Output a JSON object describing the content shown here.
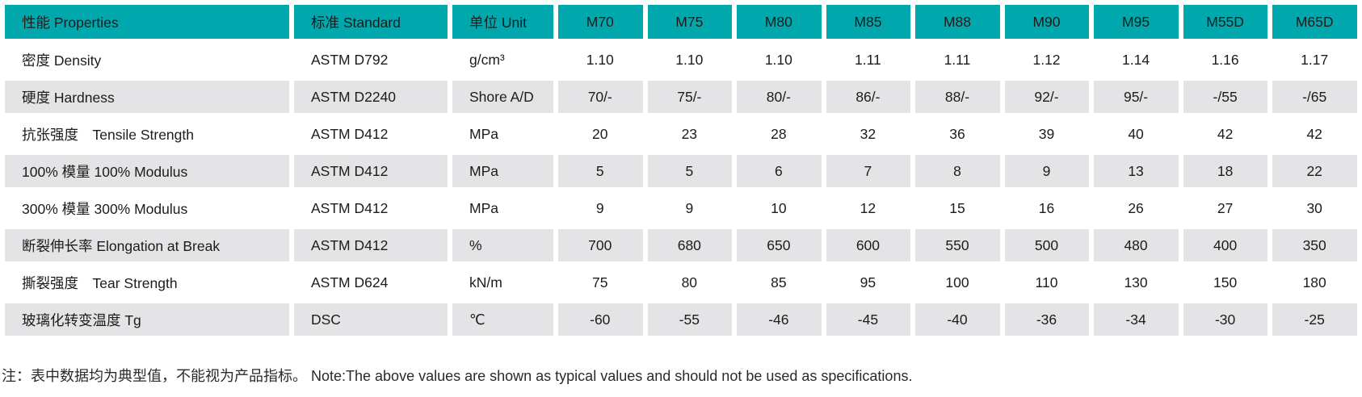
{
  "colors": {
    "header_bg": "#00A7AC",
    "row_alt_bg": "#E4E4E6",
    "text": "#1C1C1C"
  },
  "table": {
    "columns": [
      {
        "key": "properties",
        "header": "性能 Properties"
      },
      {
        "key": "standard",
        "header": "标准 Standard"
      },
      {
        "key": "unit",
        "header": "单位 Unit"
      },
      {
        "key": "m70",
        "header": "M70"
      },
      {
        "key": "m75",
        "header": "M75"
      },
      {
        "key": "m80",
        "header": "M80"
      },
      {
        "key": "m85",
        "header": "M85"
      },
      {
        "key": "m88",
        "header": "M88"
      },
      {
        "key": "m90",
        "header": "M90"
      },
      {
        "key": "m95",
        "header": "M95"
      },
      {
        "key": "m55d",
        "header": "M55D"
      },
      {
        "key": "m65d",
        "header": "M65D"
      }
    ],
    "rows": [
      {
        "label": "密度 Density",
        "standard": "ASTM D792",
        "unit": "g/cm³",
        "values": [
          "1.10",
          "1.10",
          "1.10",
          "1.11",
          "1.11",
          "1.12",
          "1.14",
          "1.16",
          "1.17"
        ]
      },
      {
        "label": "硬度 Hardness",
        "standard": "ASTM D2240",
        "unit": "Shore A/D",
        "values": [
          "70/-",
          "75/-",
          "80/-",
          "86/-",
          "88/-",
          "92/-",
          "95/-",
          "-/55",
          "-/65"
        ]
      },
      {
        "label": "抗张强度　Tensile Strength",
        "standard": "ASTM D412",
        "unit": "MPa",
        "values": [
          "20",
          "23",
          "28",
          "32",
          "36",
          "39",
          "40",
          "42",
          "42"
        ]
      },
      {
        "label": "100% 模量 100% Modulus",
        "standard": "ASTM D412",
        "unit": "MPa",
        "values": [
          "5",
          "5",
          "6",
          "7",
          "8",
          "9",
          "13",
          "18",
          "22"
        ]
      },
      {
        "label": "300% 模量 300% Modulus",
        "standard": "ASTM D412",
        "unit": "MPa",
        "values": [
          "9",
          "9",
          "10",
          "12",
          "15",
          "16",
          "26",
          "27",
          "30"
        ]
      },
      {
        "label": "断裂伸长率 Elongation at Break",
        "standard": "ASTM D412",
        "unit": "%",
        "values": [
          "700",
          "680",
          "650",
          "600",
          "550",
          "500",
          "480",
          "400",
          "350"
        ]
      },
      {
        "label": "撕裂强度　Tear Strength",
        "standard": "ASTM D624",
        "unit": "kN/m",
        "values": [
          "75",
          "80",
          "85",
          "95",
          "100",
          "110",
          "130",
          "150",
          "180"
        ]
      },
      {
        "label": "玻璃化转变温度 Tg",
        "standard": "DSC",
        "unit": "℃",
        "values": [
          "-60",
          "-55",
          "-46",
          "-45",
          "-40",
          "-36",
          "-34",
          "-30",
          "-25"
        ]
      }
    ]
  },
  "note": "注：表中数据均为典型值，不能视为产品指标。 Note:The above values are shown as typical values and should not be used as specifications."
}
